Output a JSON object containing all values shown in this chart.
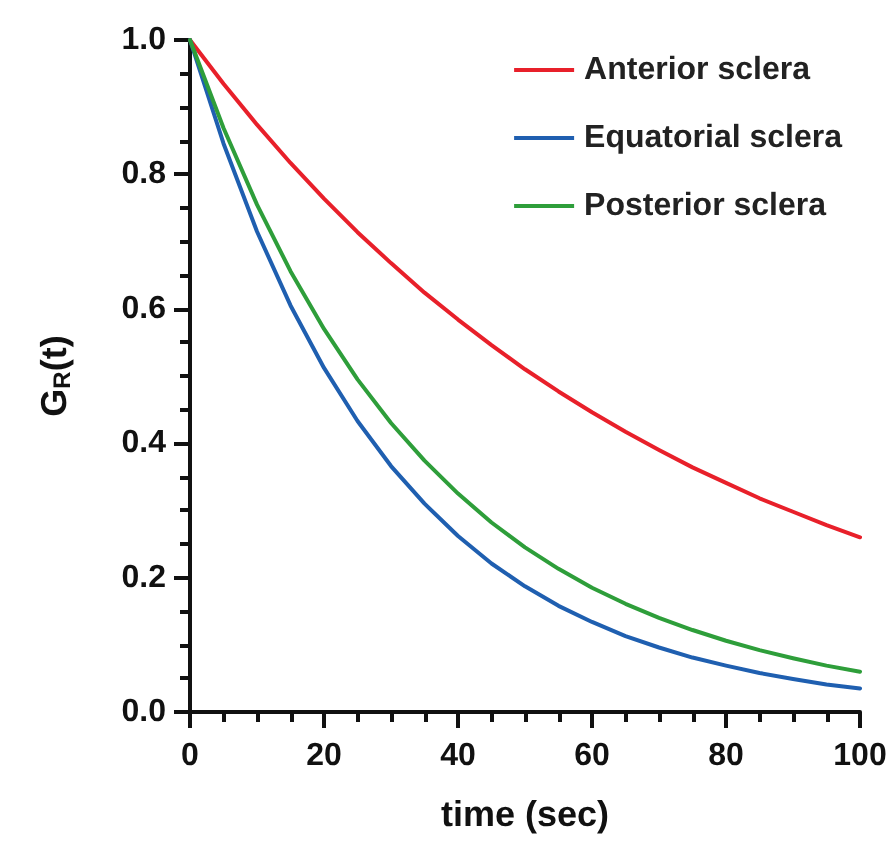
{
  "chart_data": {
    "type": "line",
    "xlabel": "time (sec)",
    "ylabel": "G$_{R}$(t)",
    "x": [
      0,
      5,
      10,
      15,
      20,
      25,
      30,
      35,
      40,
      45,
      50,
      55,
      60,
      65,
      70,
      75,
      80,
      85,
      90,
      95,
      100
    ],
    "series": [
      {
        "name": "Anterior sclera",
        "color": "#e8202a",
        "values": [
          1,
          0.935,
          0.874,
          0.817,
          0.764,
          0.714,
          0.668,
          0.624,
          0.584,
          0.546,
          0.51,
          0.477,
          0.446,
          0.417,
          0.39,
          0.364,
          0.341,
          0.318,
          0.298,
          0.278,
          0.26
        ]
      },
      {
        "name": "Equatorial sclera",
        "color": "#1f5fb0",
        "values": [
          1,
          0.846,
          0.715,
          0.605,
          0.512,
          0.433,
          0.366,
          0.31,
          0.262,
          0.221,
          0.187,
          0.158,
          0.134,
          0.113,
          0.096,
          0.081,
          0.069,
          0.058,
          0.049,
          0.041,
          0.035
        ]
      },
      {
        "name": "Posterior sclera",
        "color": "#2e9e3a",
        "values": [
          1,
          0.869,
          0.755,
          0.656,
          0.57,
          0.495,
          0.43,
          0.374,
          0.325,
          0.282,
          0.245,
          0.213,
          0.185,
          0.161,
          0.14,
          0.122,
          0.106,
          0.092,
          0.08,
          0.069,
          0.06
        ]
      }
    ],
    "xlim": [
      0,
      100
    ],
    "xticks": [
      0,
      20,
      40,
      60,
      80,
      100
    ],
    "ylim": [
      0,
      1
    ],
    "yticks": [
      {
        "value": 0,
        "label": "0.0"
      },
      0.2,
      0.4,
      0.6,
      0.8,
      {
        "value": 1,
        "label": "1.0"
      }
    ],
    "grid": false,
    "legend": "top right",
    "marker": "none",
    "line_style": "solid"
  }
}
